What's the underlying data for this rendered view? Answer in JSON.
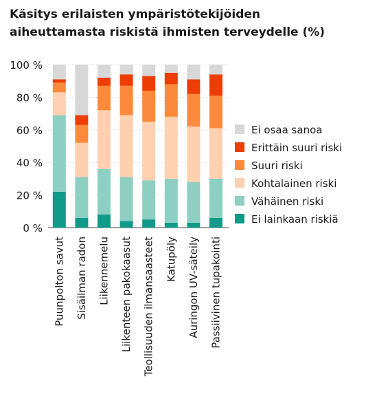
{
  "chart_data": {
    "type": "bar",
    "stacked": true,
    "title_lines": [
      "Käsitys erilaisten ympäristötekijöiden",
      "aiheuttamasta riskistä ihmisten terveydelle (%)"
    ],
    "categories": [
      "Puunpolton savut",
      "Sisäilman radon",
      "Liikennemelu",
      "Liikenteen pakokaasut",
      "Teollisuuden ilmansaasteet",
      "Katupöly",
      "Auringon UV-säteily",
      "Passiivinen tupakointi"
    ],
    "series": [
      {
        "name": "Ei lainkaan riskiä",
        "color": "#0f9a8a",
        "values": [
          22,
          6,
          8,
          4,
          5,
          3,
          3,
          6
        ]
      },
      {
        "name": "Vähäinen riski",
        "color": "#8ecfc3",
        "values": [
          47,
          25,
          28,
          27,
          24,
          27,
          25,
          24
        ]
      },
      {
        "name": "Kohtalainen riski",
        "color": "#ffd0b0",
        "values": [
          14,
          21,
          36,
          38,
          36,
          38,
          34,
          31
        ]
      },
      {
        "name": "Suuri riski",
        "color": "#fb8a3c",
        "values": [
          6,
          11,
          15,
          18,
          19,
          20,
          20,
          20
        ]
      },
      {
        "name": "Erittäin suuri riski",
        "color": "#ee3c05",
        "values": [
          2,
          6,
          5,
          7,
          9,
          7,
          9,
          13
        ]
      },
      {
        "name": "Ei osaa sanoa",
        "color": "#d8d8d8",
        "values": [
          9,
          31,
          8,
          6,
          7,
          5,
          9,
          6
        ]
      }
    ],
    "yticks": [
      "0 %",
      "20 %",
      "40 %",
      "60 %",
      "80 %",
      "100 %"
    ],
    "ylim": [
      0,
      100
    ],
    "grid": true,
    "legend_position": "right"
  }
}
